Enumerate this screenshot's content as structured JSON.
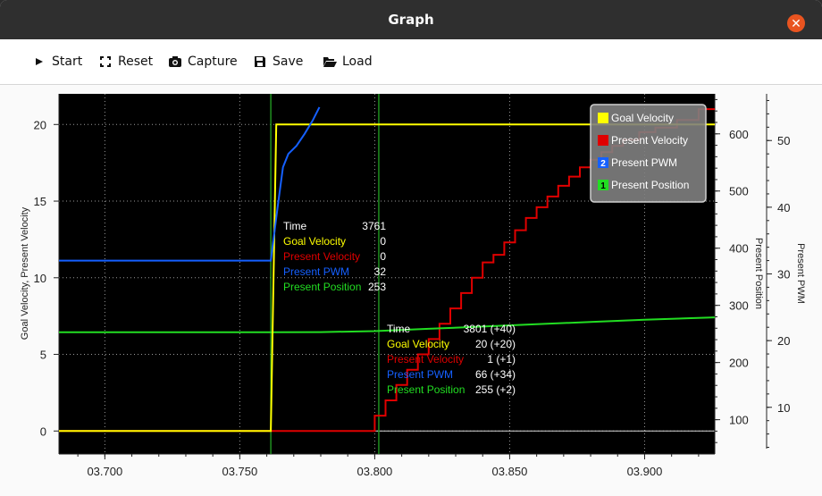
{
  "window": {
    "title": "Graph"
  },
  "toolbar": {
    "start_label": "Start",
    "reset_label": "Reset",
    "capture_label": "Capture",
    "save_label": "Save",
    "load_label": "Load"
  },
  "colors": {
    "goal_velocity": "#ffff00",
    "present_velocity": "#e00000",
    "present_pwm": "#1560ff",
    "present_position": "#22dd22",
    "plot_bg": "#000000",
    "cursor": "#1f8f1f",
    "close": "#e95420"
  },
  "chart_data": {
    "type": "line",
    "x_tick_labels": [
      "03.700",
      "03.750",
      "03.800",
      "03.850",
      "03.900"
    ],
    "x_ticks": [
      3.7,
      3.75,
      3.8,
      3.85,
      3.9
    ],
    "xlim": [
      3.683,
      3.926
    ],
    "axes": {
      "left": {
        "label": "Goal Velocity, Present Velocity",
        "ylim": [
          -1.5,
          22
        ],
        "ticks": [
          0,
          5,
          10,
          15,
          20
        ]
      },
      "right1": {
        "label": "Present Position",
        "ylim": [
          40,
          670
        ],
        "ticks": [
          100,
          200,
          300,
          400,
          500,
          600
        ]
      },
      "right2": {
        "label": "Present PWM",
        "ylim": [
          3,
          57
        ],
        "ticks": [
          10,
          20,
          30,
          40,
          50
        ]
      }
    },
    "grid": true,
    "legend_position": "top-right",
    "series": [
      {
        "name": "Goal Velocity",
        "axis": "left",
        "marker": "",
        "color": "#ffff00",
        "x": [
          3.683,
          3.7615,
          3.7635,
          3.926
        ],
        "y": [
          0,
          0,
          20,
          20
        ]
      },
      {
        "name": "Present Velocity",
        "axis": "left",
        "marker": "",
        "color": "#e00000",
        "x": [
          3.683,
          3.8,
          3.8,
          3.804,
          3.804,
          3.808,
          3.808,
          3.812,
          3.812,
          3.816,
          3.816,
          3.82,
          3.82,
          3.824,
          3.824,
          3.828,
          3.828,
          3.832,
          3.832,
          3.836,
          3.836,
          3.84,
          3.84,
          3.844,
          3.844,
          3.848,
          3.848,
          3.852,
          3.852,
          3.856,
          3.856,
          3.86,
          3.86,
          3.864,
          3.864,
          3.868,
          3.868,
          3.872,
          3.872,
          3.876,
          3.876,
          3.88,
          3.88,
          3.884,
          3.884,
          3.888,
          3.888,
          3.892,
          3.892,
          3.898,
          3.898,
          3.904,
          3.904,
          3.912,
          3.912,
          3.92,
          3.92,
          3.926
        ],
        "y": [
          0,
          0,
          1,
          1,
          2,
          2,
          3,
          3,
          4,
          4,
          5,
          5,
          6,
          6,
          7,
          7,
          8,
          8,
          9,
          9,
          10,
          10,
          11,
          11,
          11.5,
          11.5,
          12.3,
          12.3,
          13.1,
          13.1,
          13.9,
          13.9,
          14.6,
          14.6,
          15.3,
          15.3,
          16,
          16,
          16.6,
          16.6,
          17.2,
          17.2,
          17.7,
          17.7,
          18.2,
          18.2,
          18.6,
          18.6,
          19,
          19,
          19.5,
          19.5,
          19.8,
          19.8,
          20.3,
          20.3,
          21,
          21
        ]
      },
      {
        "name": "Present PWM",
        "axis": "right2",
        "marker": "2",
        "color": "#1560ff",
        "x": [
          3.683,
          3.7615,
          3.764,
          3.766,
          3.768,
          3.771,
          3.774,
          3.777,
          3.7795
        ],
        "y": [
          32,
          32,
          40,
          46,
          48,
          49.2,
          51,
          53,
          55
        ]
      },
      {
        "name": "Present Position",
        "axis": "right1",
        "marker": "1",
        "color": "#22dd22",
        "x": [
          3.683,
          3.7615,
          3.78,
          3.8,
          3.82,
          3.84,
          3.86,
          3.88,
          3.9,
          3.926
        ],
        "y": [
          253,
          253,
          253.3,
          255,
          259,
          263,
          267,
          271,
          275,
          279
        ]
      }
    ],
    "cursors": [
      {
        "x": 3.7615,
        "lines": [
          {
            "label": "Time",
            "value": "3761"
          },
          {
            "label": "Goal Velocity",
            "value": "0"
          },
          {
            "label": "Present Velocity",
            "value": "0"
          },
          {
            "label": "Present PWM",
            "value": "32"
          },
          {
            "label": "Present Position",
            "value": "253"
          }
        ]
      },
      {
        "x": 3.8015,
        "lines": [
          {
            "label": "Time",
            "value": "3801 (+40)"
          },
          {
            "label": "Goal Velocity",
            "value": "20 (+20)"
          },
          {
            "label": "Present Velocity",
            "value": "1 (+1)"
          },
          {
            "label": "Present PWM",
            "value": "66 (+34)"
          },
          {
            "label": "Present Position",
            "value": "255 (+2)"
          }
        ]
      }
    ]
  }
}
